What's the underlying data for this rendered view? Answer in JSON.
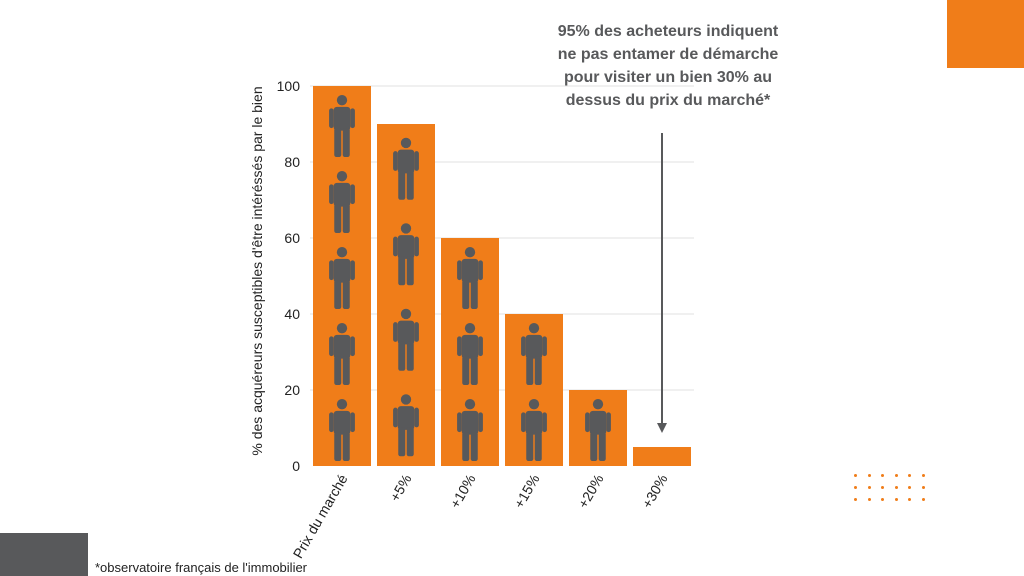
{
  "chart_data": {
    "type": "bar",
    "categories": [
      "Prix du marché",
      "+5%",
      "+10%",
      "+15%",
      "+20%",
      "+30%"
    ],
    "values": [
      100,
      90,
      60,
      40,
      20,
      5
    ],
    "icons_per_bar": [
      5,
      4,
      3,
      2,
      1,
      0
    ],
    "title": "",
    "xlabel": "",
    "ylabel": "% des acquéreurs susceptibles d'être intéréssés par le bien",
    "ylim": [
      0,
      100
    ],
    "yticks": [
      0,
      20,
      40,
      60,
      80,
      100
    ],
    "grid": true,
    "legend": "none",
    "annotation": "95% des acheteurs indiquent ne pas entamer de  démarche pour visiter un bien 30% au dessus du prix du marché*",
    "bar_icon": "person-icon"
  },
  "footnote": "*observatoire français de l'immobilier",
  "colors": {
    "bar": "#F07D19",
    "icon": "#58595B",
    "grid": "#E2E2E2",
    "arrow": "#58595B",
    "accent_orange": "#F07D19",
    "accent_gray": "#58595B"
  }
}
